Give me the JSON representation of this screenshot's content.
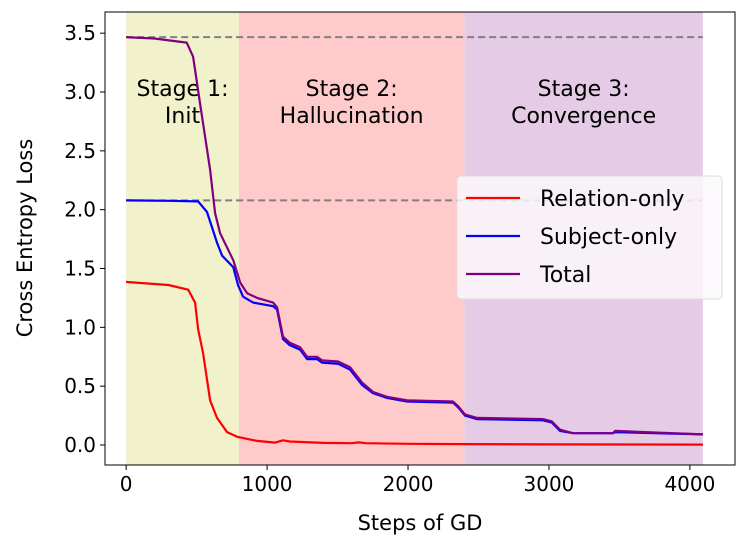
{
  "chart_data": {
    "type": "line",
    "title": "",
    "xlabel": "Steps of GD",
    "ylabel": "Cross Entropy Loss",
    "xlim": [
      -150,
      4320
    ],
    "ylim": [
      -0.17,
      3.68
    ],
    "xticks": [
      0,
      1000,
      2000,
      3000,
      4000
    ],
    "xtick_labels": [
      "0",
      "1000",
      "2000",
      "3000",
      "4000"
    ],
    "yticks": [
      0,
      0.5,
      1,
      1.5,
      2,
      2.5,
      3,
      3.5
    ],
    "ytick_labels": [
      "0.0",
      "0.5",
      "1.0",
      "1.5",
      "2.0",
      "2.5",
      "3.0",
      "3.5"
    ],
    "grid": false,
    "legend_position": "center-right",
    "stages": [
      {
        "label1": "Stage 1:",
        "label2": "Init",
        "x0": 0,
        "x1": 800,
        "color": "#f1f1cc"
      },
      {
        "label1": "Stage 2:",
        "label2": "Hallucination",
        "x0": 800,
        "x1": 2400,
        "color": "#ffcaca"
      },
      {
        "label1": "Stage 3:",
        "label2": "Convergence",
        "x0": 2400,
        "x1": 4092,
        "color": "#e5cbe5"
      }
    ],
    "reference_lines": [
      {
        "y": 3.466,
        "color": "#808080",
        "style": "dashed"
      },
      {
        "y": 2.079,
        "color": "#808080",
        "style": "dashed"
      }
    ],
    "series": [
      {
        "name": "Relation-only",
        "color": "#ff0000",
        "x": [
          0,
          300,
          440,
          489,
          511,
          546,
          596,
          645,
          716,
          787,
          929,
          1057,
          1113,
          1160,
          1400,
          1600,
          1650,
          1700,
          2000,
          2400,
          3000,
          4092
        ],
        "y": [
          1.386,
          1.36,
          1.32,
          1.21,
          0.98,
          0.78,
          0.38,
          0.23,
          0.11,
          0.07,
          0.035,
          0.02,
          0.04,
          0.03,
          0.018,
          0.015,
          0.022,
          0.015,
          0.01,
          0.008,
          0.005,
          0.003
        ]
      },
      {
        "name": "Subject-only",
        "color": "#0000ff",
        "x": [
          0,
          300,
          511,
          574,
          645,
          681,
          760,
          794,
          830,
          901,
          1043,
          1071,
          1113,
          1160,
          1234,
          1284,
          1355,
          1390,
          1504,
          1589,
          1674,
          1752,
          1851,
          1993,
          2319,
          2355,
          2404,
          2489,
          2957,
          3021,
          3078,
          3170,
          3454,
          3470,
          4092
        ],
        "y": [
          2.079,
          2.075,
          2.07,
          1.98,
          1.72,
          1.61,
          1.51,
          1.36,
          1.26,
          1.21,
          1.18,
          1.15,
          0.9,
          0.85,
          0.81,
          0.73,
          0.73,
          0.7,
          0.69,
          0.64,
          0.51,
          0.44,
          0.4,
          0.37,
          0.36,
          0.32,
          0.25,
          0.22,
          0.21,
          0.19,
          0.12,
          0.1,
          0.1,
          0.11,
          0.09
        ]
      },
      {
        "name": "Total",
        "color": "#800080",
        "x": [
          0,
          200,
          430,
          475,
          525,
          596,
          631,
          667,
          760,
          809,
          858,
          929,
          1043,
          1071,
          1113,
          1160,
          1234,
          1284,
          1355,
          1390,
          1504,
          1589,
          1674,
          1752,
          1851,
          1993,
          2319,
          2355,
          2404,
          2489,
          2957,
          3021,
          3078,
          3170,
          3454,
          3470,
          4092
        ],
        "y": [
          3.466,
          3.455,
          3.42,
          3.3,
          2.9,
          2.34,
          1.97,
          1.8,
          1.57,
          1.38,
          1.29,
          1.25,
          1.21,
          1.17,
          0.92,
          0.87,
          0.83,
          0.75,
          0.75,
          0.72,
          0.71,
          0.66,
          0.53,
          0.45,
          0.41,
          0.38,
          0.37,
          0.33,
          0.26,
          0.23,
          0.22,
          0.2,
          0.13,
          0.1,
          0.1,
          0.12,
          0.09
        ]
      }
    ]
  }
}
